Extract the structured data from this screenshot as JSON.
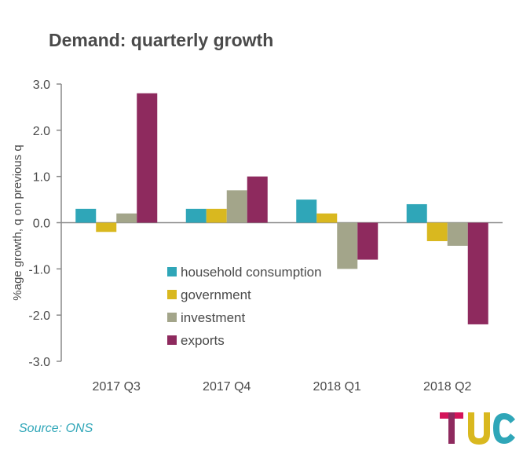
{
  "chart_data": {
    "type": "bar",
    "title": "Demand: quarterly growth",
    "ylabel": "%age growth, q on previous q",
    "xlabel": "",
    "ylim": [
      -3.0,
      3.0
    ],
    "yticks": [
      3.0,
      2.0,
      1.0,
      0.0,
      -1.0,
      -2.0,
      -3.0
    ],
    "ytick_labels": [
      "3.0",
      "2.0",
      "1.0",
      "0.0",
      "-1.0",
      "-2.0",
      "-3.0"
    ],
    "categories": [
      "2017 Q3",
      "2017 Q4",
      "2018 Q1",
      "2018 Q2"
    ],
    "series": [
      {
        "name": "household consumption",
        "color": "#2fa6b8",
        "values": [
          0.3,
          0.3,
          0.5,
          0.4
        ]
      },
      {
        "name": "government",
        "color": "#d9b81f",
        "values": [
          -0.2,
          0.3,
          0.2,
          -0.4
        ]
      },
      {
        "name": "investment",
        "color": "#a3a58a",
        "values": [
          0.2,
          0.7,
          -1.0,
          -0.5
        ]
      },
      {
        "name": "exports",
        "color": "#8e2a5e",
        "values": [
          2.8,
          1.0,
          -0.8,
          -2.2
        ]
      }
    ],
    "legend_position": "lower-left inside",
    "grid": false
  },
  "source": "Source: ONS",
  "logo": {
    "text": "TUC",
    "colors": [
      "#d4145a",
      "#8e2a5e",
      "#d9b81f",
      "#2fa6b8"
    ]
  }
}
